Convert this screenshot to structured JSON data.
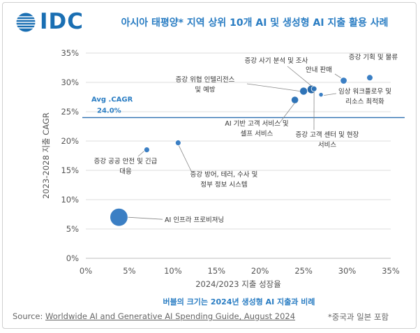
{
  "header": {
    "logo_text": "IDC",
    "title": "아시아 태평양* 지역 상위 10개 AI 및 생성형 AI 지출 활용 사례"
  },
  "chart_data": {
    "type": "scatter",
    "xlabel": "2024/2023 지출 성장율",
    "ylabel": "2023-2028 지출 CAGR",
    "xlim": [
      0,
      35
    ],
    "ylim": [
      0,
      35
    ],
    "x_ticks": [
      "0%",
      "5%",
      "10%",
      "15%",
      "20%",
      "25%",
      "30%",
      "35%"
    ],
    "y_ticks": [
      "0%",
      "5%",
      "10%",
      "15%",
      "20%",
      "25%",
      "30%",
      "35%"
    ],
    "tick_values": [
      0,
      5,
      10,
      15,
      20,
      25,
      30,
      35
    ],
    "grid": "horizontal",
    "avg_line": {
      "value": 24.0,
      "label_line1": "Avg .CAGR",
      "label_line2": "24.0%"
    },
    "bubble_note": "버블의 크기는 2024년 생성형 AI 지출과 비례",
    "points": [
      {
        "label": [
          "AI 인프라 프로비져닝"
        ],
        "x": 3.8,
        "y": 7.0,
        "relative_size": 3.2
      },
      {
        "label": [
          "증강 공공 안전 및 긴급",
          "대응"
        ],
        "x": 7.0,
        "y": 18.5,
        "relative_size": 1.0
      },
      {
        "label": [
          "증강 방어, 테러, 수사 및",
          "정부 정보 시스템"
        ],
        "x": 10.6,
        "y": 19.7,
        "relative_size": 1.0
      },
      {
        "label": [
          "AI 기반 고객 서비스 및",
          "셀프 서비스"
        ],
        "x": 24.0,
        "y": 27.0,
        "relative_size": 1.3
      },
      {
        "label": [
          "증강 위협 인텔리전스",
          "및 예방"
        ],
        "x": 25.0,
        "y": 28.5,
        "relative_size": 1.4
      },
      {
        "label": [
          "증강 사기 분석 및 조사"
        ],
        "x": 25.9,
        "y": 28.8,
        "relative_size": 1.5
      },
      {
        "label": [
          "증강 고객 센터 및 현장",
          "서비스"
        ],
        "x": 26.2,
        "y": 28.9,
        "relative_size": 1.0
      },
      {
        "label": [
          "임상 워크플로우 및",
          "리소스 최적화"
        ],
        "x": 27.0,
        "y": 27.9,
        "relative_size": 0.8
      },
      {
        "label": [
          "안내 판매"
        ],
        "x": 29.6,
        "y": 30.3,
        "relative_size": 1.2
      },
      {
        "label": [
          "증강 기획 및 물류"
        ],
        "x": 32.6,
        "y": 30.8,
        "relative_size": 1.1
      }
    ]
  },
  "footer": {
    "source_prefix": "Source: ",
    "source_link": "Worldwide AI and Generative AI Spending Guide, August 2024",
    "footnote": "*중국과 일본 포함"
  }
}
